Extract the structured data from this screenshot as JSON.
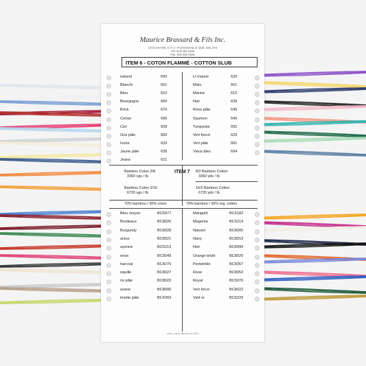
{
  "header": {
    "brand": "Maurice Brassard & Fils Inc.",
    "address": "1573 SAVOIE, C.P. 4 - PLESSISVILLE QUÉ. G6L 2Y6",
    "phone": "Tél: 819-362-2408",
    "fax": "Fax: 819-362-2045"
  },
  "item6": {
    "title": "ITEM 6 - COTON FLAMMÉ - COTTON SLUB",
    "left": [
      {
        "name": "naturel",
        "code": "600"
      },
      {
        "name": "Blanchi",
        "code": "601"
      },
      {
        "name": "Bleu",
        "code": "610"
      },
      {
        "name": "Bourgogne",
        "code": "660"
      },
      {
        "name": "Brick",
        "code": "670"
      },
      {
        "name": "Cerise",
        "code": "696"
      },
      {
        "name": "Ciel",
        "code": "609"
      },
      {
        "name": "Gris pâle",
        "code": "683"
      },
      {
        "name": "Ivoire",
        "code": "633"
      },
      {
        "name": "Jaune pâle",
        "code": "635"
      },
      {
        "name": "Jeans",
        "code": "621"
      }
    ],
    "right": [
      {
        "name": "Lt mauve",
        "code": "620"
      },
      {
        "name": "Maïs",
        "code": "661"
      },
      {
        "name": "Marine",
        "code": "615"
      },
      {
        "name": "Noir",
        "code": "639"
      },
      {
        "name": "Rose pâle",
        "code": "645"
      },
      {
        "name": "Saumon",
        "code": "640"
      },
      {
        "name": "Turquoise",
        "code": "655"
      },
      {
        "name": "Vert foncé",
        "code": "629"
      },
      {
        "name": "Vert pâle",
        "code": "681"
      },
      {
        "name": "Vieux bleu",
        "code": "694"
      }
    ]
  },
  "item7": {
    "title": "ITEM 7",
    "bambou_2_8": "Bambou Coton 2/8",
    "bambou_2_8_yds": "3360 vgs / lb.",
    "bamboo_8_2": "8/2 Bamboo Cotton",
    "bamboo_8_2_yds": "3360 yds / lb.",
    "bambou_2_16": "Bambou Coton 2/16",
    "bambou_2_16_yds": "6720 vgs / lb.",
    "bamboo_16_2": "16/2 Bamboo Cotton",
    "bamboo_16_2_yds": "6720 yds / lb.",
    "left_header": "70% bambou / 30% coton",
    "right_header": "70% bamboo / 30% org. cotton",
    "left": [
      {
        "name": "Bleu moyen",
        "code": "BC5977"
      },
      {
        "name": "Bordeaux",
        "code": "BC8026"
      },
      {
        "name": "Burgundy",
        "code": "BC8028"
      },
      {
        "name": "actus",
        "code": "BC8021"
      },
      {
        "name": "ayenne",
        "code": "BC5213"
      },
      {
        "name": "erise",
        "code": "BC5549"
      },
      {
        "name": "harcoal",
        "code": "BC4275"
      },
      {
        "name": "oquille",
        "code": "BC8027"
      },
      {
        "name": "ris pâle",
        "code": "BC8023"
      },
      {
        "name": "avane",
        "code": "BC8006"
      },
      {
        "name": "imette pâle",
        "code": "BC4269"
      }
    ],
    "right": [
      {
        "name": "Marigold",
        "code": "BC5182"
      },
      {
        "name": "Magenta",
        "code": "BC5214"
      },
      {
        "name": "Naturel",
        "code": "BC8000"
      },
      {
        "name": "Navy",
        "code": "BC8019"
      },
      {
        "name": "Noir",
        "code": "BC8999"
      },
      {
        "name": "Orange brûlé",
        "code": "BC8020"
      },
      {
        "name": "Periwinkle",
        "code": "BC5067"
      },
      {
        "name": "Rose",
        "code": "BC8052"
      },
      {
        "name": "Royal",
        "code": "BC5070"
      },
      {
        "name": "Vert forcé",
        "code": "BC8022"
      },
      {
        "name": "Vieil or",
        "code": "BC5229"
      }
    ]
  },
  "footer": "carte_coton_flamme.ca 2022",
  "colors": {
    "left_threads": [
      "#dfe6ef",
      "#f1f1f4",
      "#7b9fd4",
      "#a31b3a",
      "#b4332e",
      "#e63a6f",
      "#b7d6ee",
      "#cfd2d6",
      "#f4eedb",
      "#f4e9a6",
      "#3d5d8c",
      "#f08a3d",
      "#f2a13b",
      "#4a7fd0",
      "#8a2232",
      "#7a1d2c",
      "#3f8a55",
      "#c53a2b",
      "#e0447a",
      "#37383b",
      "#efe4d3",
      "#c8c9cc",
      "#b7a08a",
      "#c5d86a"
    ],
    "right_threads": [
      "#8a4fc8",
      "#f6d76b",
      "#2a3a6b",
      "#222222",
      "#f4b9c8",
      "#f29a85",
      "#2fb4b0",
      "#1f6b4c",
      "#a9dcb5",
      "#5b7fa3",
      "#f5a623",
      "#c32b8b",
      "#f3efe6",
      "#1e2a4a",
      "#151515",
      "#e2692c",
      "#7c89d8",
      "#ee6f8f",
      "#2f5fc4",
      "#1f5a3a",
      "#c19a3a"
    ]
  }
}
